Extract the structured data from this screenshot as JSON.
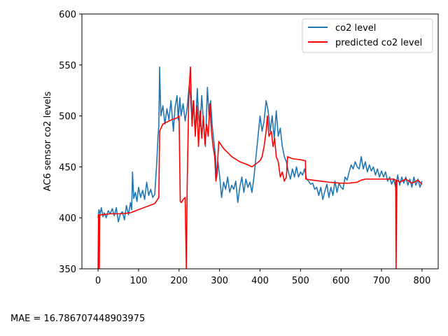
{
  "annotation": {
    "mae_text": "MAE = 16.786707448903975"
  },
  "chart_data": {
    "type": "line",
    "title": "",
    "xlabel": "",
    "ylabel": "AC6 sensor co2 levels",
    "xlim": [
      -40,
      840
    ],
    "ylim": [
      350,
      600
    ],
    "xticks": [
      0,
      100,
      200,
      300,
      400,
      500,
      600,
      700,
      800
    ],
    "yticks": [
      350,
      400,
      450,
      500,
      550,
      600
    ],
    "grid": false,
    "legend_position": "upper right",
    "series": [
      {
        "name": "co2 level",
        "color": "#1f77b4",
        "points": [
          [
            0,
            400
          ],
          [
            2,
            408
          ],
          [
            5,
            404
          ],
          [
            8,
            410
          ],
          [
            12,
            401
          ],
          [
            15,
            405
          ],
          [
            20,
            400
          ],
          [
            25,
            407
          ],
          [
            30,
            404
          ],
          [
            35,
            409
          ],
          [
            40,
            402
          ],
          [
            45,
            410
          ],
          [
            50,
            396
          ],
          [
            55,
            404
          ],
          [
            60,
            406
          ],
          [
            65,
            398
          ],
          [
            70,
            412
          ],
          [
            75,
            403
          ],
          [
            80,
            415
          ],
          [
            83,
            408
          ],
          [
            85,
            445
          ],
          [
            88,
            419
          ],
          [
            92,
            425
          ],
          [
            96,
            416
          ],
          [
            100,
            430
          ],
          [
            105,
            420
          ],
          [
            110,
            427
          ],
          [
            115,
            418
          ],
          [
            120,
            435
          ],
          [
            125,
            422
          ],
          [
            130,
            428
          ],
          [
            135,
            420
          ],
          [
            140,
            423
          ],
          [
            145,
            455
          ],
          [
            148,
            480
          ],
          [
            150,
            490
          ],
          [
            152,
            548
          ],
          [
            155,
            500
          ],
          [
            160,
            510
          ],
          [
            165,
            492
          ],
          [
            170,
            507
          ],
          [
            175,
            496
          ],
          [
            180,
            515
          ],
          [
            183,
            500
          ],
          [
            186,
            485
          ],
          [
            190,
            508
          ],
          [
            195,
            520
          ],
          [
            198,
            496
          ],
          [
            202,
            518
          ],
          [
            205,
            500
          ],
          [
            210,
            512
          ],
          [
            215,
            495
          ],
          [
            220,
            508
          ],
          [
            225,
            530
          ],
          [
            228,
            520
          ],
          [
            232,
            496
          ],
          [
            235,
            515
          ],
          [
            240,
            483
          ],
          [
            245,
            527
          ],
          [
            248,
            500
          ],
          [
            252,
            490
          ],
          [
            256,
            520
          ],
          [
            260,
            495
          ],
          [
            265,
            470
          ],
          [
            270,
            528
          ],
          [
            274,
            500
          ],
          [
            278,
            515
          ],
          [
            282,
            490
          ],
          [
            286,
            475
          ],
          [
            290,
            460
          ],
          [
            293,
            440
          ],
          [
            296,
            455
          ],
          [
            300,
            442
          ],
          [
            305,
            420
          ],
          [
            310,
            435
          ],
          [
            315,
            428
          ],
          [
            320,
            440
          ],
          [
            325,
            425
          ],
          [
            330,
            432
          ],
          [
            335,
            428
          ],
          [
            340,
            436
          ],
          [
            345,
            415
          ],
          [
            350,
            430
          ],
          [
            355,
            440
          ],
          [
            360,
            425
          ],
          [
            365,
            438
          ],
          [
            370,
            430
          ],
          [
            375,
            435
          ],
          [
            380,
            425
          ],
          [
            385,
            440
          ],
          [
            390,
            460
          ],
          [
            395,
            480
          ],
          [
            400,
            500
          ],
          [
            405,
            485
          ],
          [
            410,
            495
          ],
          [
            415,
            515
          ],
          [
            420,
            505
          ],
          [
            425,
            485
          ],
          [
            430,
            500
          ],
          [
            435,
            478
          ],
          [
            440,
            505
          ],
          [
            445,
            480
          ],
          [
            450,
            488
          ],
          [
            455,
            470
          ],
          [
            460,
            460
          ],
          [
            465,
            455
          ],
          [
            470,
            445
          ],
          [
            475,
            438
          ],
          [
            480,
            448
          ],
          [
            485,
            440
          ],
          [
            490,
            450
          ],
          [
            495,
            440
          ],
          [
            500,
            445
          ],
          [
            505,
            442
          ],
          [
            510,
            448
          ],
          [
            515,
            438
          ],
          [
            520,
            436
          ],
          [
            525,
            433
          ],
          [
            530,
            434
          ],
          [
            535,
            428
          ],
          [
            540,
            430
          ],
          [
            545,
            422
          ],
          [
            550,
            430
          ],
          [
            555,
            418
          ],
          [
            560,
            426
          ],
          [
            565,
            433
          ],
          [
            570,
            420
          ],
          [
            575,
            430
          ],
          [
            580,
            422
          ],
          [
            585,
            436
          ],
          [
            590,
            425
          ],
          [
            595,
            434
          ],
          [
            600,
            430
          ],
          [
            605,
            428
          ],
          [
            610,
            440
          ],
          [
            615,
            437
          ],
          [
            620,
            445
          ],
          [
            625,
            452
          ],
          [
            630,
            448
          ],
          [
            635,
            455
          ],
          [
            640,
            450
          ],
          [
            645,
            448
          ],
          [
            650,
            460
          ],
          [
            655,
            448
          ],
          [
            660,
            455
          ],
          [
            665,
            445
          ],
          [
            670,
            452
          ],
          [
            675,
            446
          ],
          [
            680,
            450
          ],
          [
            685,
            442
          ],
          [
            690,
            448
          ],
          [
            695,
            440
          ],
          [
            700,
            446
          ],
          [
            705,
            440
          ],
          [
            710,
            445
          ],
          [
            715,
            436
          ],
          [
            720,
            440
          ],
          [
            725,
            433
          ],
          [
            730,
            438
          ],
          [
            735,
            430
          ],
          [
            740,
            442
          ],
          [
            745,
            432
          ],
          [
            750,
            440
          ],
          [
            755,
            434
          ],
          [
            760,
            440
          ],
          [
            765,
            432
          ],
          [
            770,
            438
          ],
          [
            775,
            430
          ],
          [
            780,
            440
          ],
          [
            785,
            432
          ],
          [
            790,
            438
          ],
          [
            795,
            430
          ],
          [
            800,
            436
          ]
        ]
      },
      {
        "name": "predicted co2 level",
        "color": "#ff0000",
        "points": [
          [
            0,
            350
          ],
          [
            1,
            403
          ],
          [
            2,
            403
          ],
          [
            3,
            350
          ],
          [
            4,
            403
          ],
          [
            10,
            403
          ],
          [
            30,
            404
          ],
          [
            60,
            404
          ],
          [
            80,
            405
          ],
          [
            100,
            408
          ],
          [
            120,
            411
          ],
          [
            140,
            414
          ],
          [
            150,
            420
          ],
          [
            152,
            485
          ],
          [
            160,
            492
          ],
          [
            180,
            496
          ],
          [
            195,
            498
          ],
          [
            200,
            500
          ],
          [
            203,
            416
          ],
          [
            206,
            415
          ],
          [
            210,
            418
          ],
          [
            215,
            420
          ],
          [
            218,
            350
          ],
          [
            220,
            430
          ],
          [
            224,
            520
          ],
          [
            228,
            548
          ],
          [
            232,
            490
          ],
          [
            236,
            515
          ],
          [
            240,
            480
          ],
          [
            244,
            510
          ],
          [
            248,
            470
          ],
          [
            252,
            505
          ],
          [
            256,
            478
          ],
          [
            260,
            500
          ],
          [
            264,
            472
          ],
          [
            268,
            492
          ],
          [
            272,
            480
          ],
          [
            276,
            512
          ],
          [
            280,
            485
          ],
          [
            284,
            470
          ],
          [
            288,
            460
          ],
          [
            291,
            436
          ],
          [
            294,
            445
          ],
          [
            298,
            475
          ],
          [
            310,
            468
          ],
          [
            330,
            460
          ],
          [
            350,
            455
          ],
          [
            370,
            452
          ],
          [
            380,
            450
          ],
          [
            390,
            453
          ],
          [
            400,
            456
          ],
          [
            405,
            460
          ],
          [
            410,
            470
          ],
          [
            415,
            485
          ],
          [
            418,
            500
          ],
          [
            422,
            480
          ],
          [
            428,
            485
          ],
          [
            432,
            470
          ],
          [
            436,
            478
          ],
          [
            440,
            460
          ],
          [
            445,
            455
          ],
          [
            450,
            440
          ],
          [
            455,
            445
          ],
          [
            460,
            436
          ],
          [
            465,
            440
          ],
          [
            468,
            460
          ],
          [
            480,
            458
          ],
          [
            500,
            457
          ],
          [
            512,
            456
          ],
          [
            513,
            438
          ],
          [
            530,
            437
          ],
          [
            550,
            436
          ],
          [
            570,
            435
          ],
          [
            600,
            434
          ],
          [
            620,
            434
          ],
          [
            640,
            435
          ],
          [
            650,
            437
          ],
          [
            660,
            438
          ],
          [
            700,
            438
          ],
          [
            730,
            438
          ],
          [
            735,
            437
          ],
          [
            736,
            350
          ],
          [
            738,
            437
          ],
          [
            745,
            435
          ],
          [
            760,
            438
          ],
          [
            775,
            434
          ],
          [
            790,
            437
          ],
          [
            800,
            433
          ]
        ]
      }
    ]
  }
}
